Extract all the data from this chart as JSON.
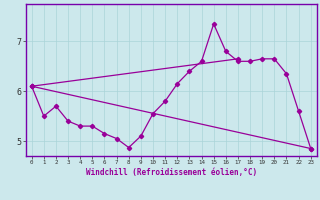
{
  "xlabel": "Windchill (Refroidissement éolien,°C)",
  "bg_color": "#cce8ec",
  "line_color": "#990099",
  "border_color": "#7700aa",
  "xlim": [
    -0.5,
    23.5
  ],
  "ylim": [
    4.7,
    7.75
  ],
  "yticks": [
    5,
    6,
    7
  ],
  "xticks": [
    0,
    1,
    2,
    3,
    4,
    5,
    6,
    7,
    8,
    9,
    10,
    11,
    12,
    13,
    14,
    15,
    16,
    17,
    18,
    19,
    20,
    21,
    22,
    23
  ],
  "series1_x": [
    0,
    1,
    2,
    3,
    4,
    5,
    6,
    7,
    8,
    9,
    10,
    11,
    12,
    13,
    14,
    15,
    16,
    17,
    18,
    19,
    20,
    21,
    22,
    23
  ],
  "series1_y": [
    6.1,
    5.5,
    5.7,
    5.4,
    5.3,
    5.3,
    5.15,
    5.05,
    4.87,
    5.1,
    5.55,
    5.8,
    6.15,
    6.4,
    6.6,
    7.35,
    6.8,
    6.6,
    6.6,
    6.65,
    6.65,
    6.35,
    5.6,
    4.85
  ],
  "series2_x": [
    0,
    23
  ],
  "series2_y": [
    6.1,
    4.85
  ],
  "series3_x": [
    0,
    17
  ],
  "series3_y": [
    6.1,
    6.65
  ]
}
